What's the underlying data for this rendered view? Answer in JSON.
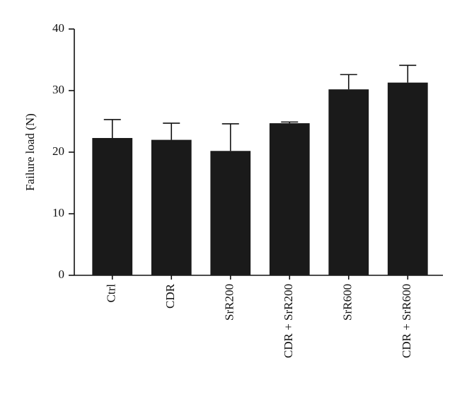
{
  "chart_data": {
    "type": "bar",
    "y_label": "Failure load (N)",
    "categories": [
      "Ctrl",
      "CDR",
      "SrR200",
      "CDR + SrR200",
      "SrR600",
      "CDR + SrR600"
    ],
    "values": [
      22.3,
      22.0,
      20.2,
      24.7,
      30.2,
      31.3
    ],
    "errors": [
      3.0,
      2.7,
      4.4,
      0.2,
      2.4,
      2.8
    ],
    "color": "#1a1a1a",
    "ylim": [
      0,
      40
    ],
    "yticks": [
      0,
      10,
      20,
      30,
      40
    ]
  }
}
